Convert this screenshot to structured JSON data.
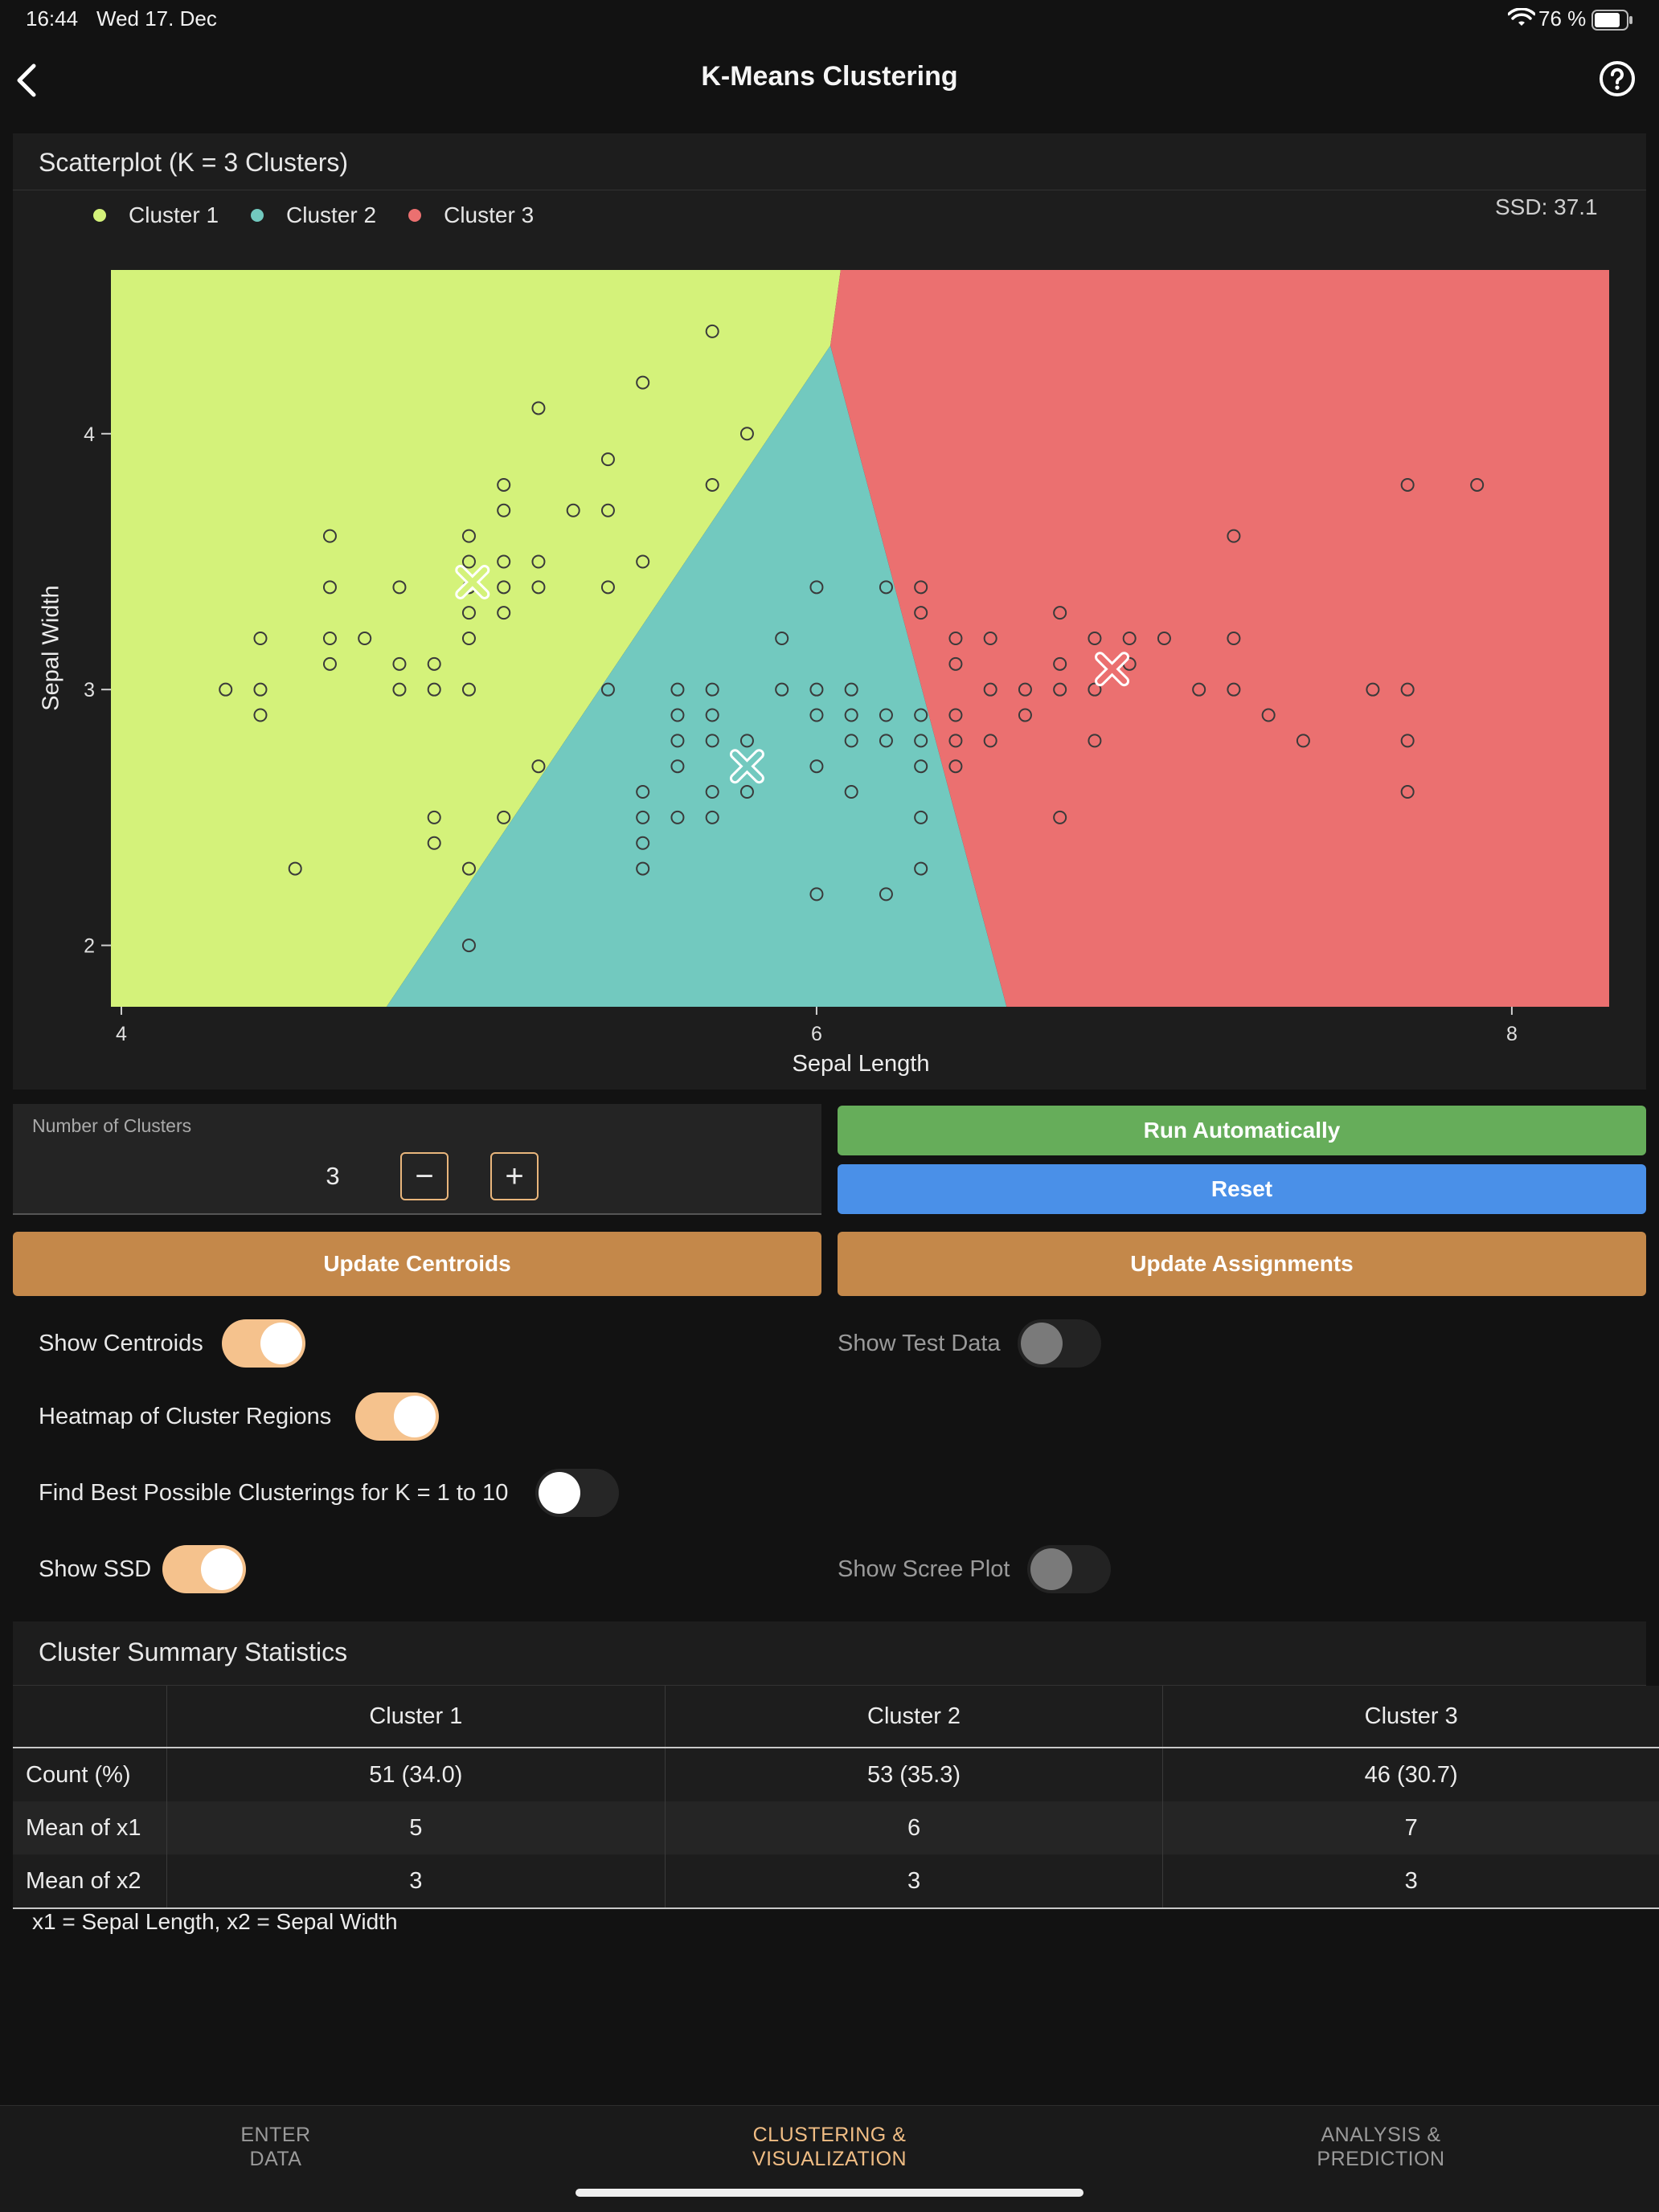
{
  "status_bar": {
    "time": "16:44",
    "date": "Wed 17. Dec",
    "battery": "76 %"
  },
  "nav": {
    "title": "K-Means Clustering",
    "back_icon": "chevron-left-icon",
    "help_icon": "help-circle-icon"
  },
  "scatter": {
    "title": "Scatterplot (K = 3 Clusters)",
    "ssd_label": "SSD: 37.1",
    "legend": [
      {
        "label": "Cluster 1",
        "color": "#d4f27a"
      },
      {
        "label": "Cluster 2",
        "color": "#72c9bf"
      },
      {
        "label": "Cluster 3",
        "color": "#eb7070"
      }
    ]
  },
  "chart_data": {
    "type": "scatter",
    "xlabel": "Sepal Length",
    "ylabel": "Sepal Width",
    "xlim": [
      3.97,
      8.28
    ],
    "ylim": [
      1.76,
      4.64
    ],
    "xticks": [
      4,
      6,
      8
    ],
    "yticks": [
      2,
      3,
      4
    ],
    "region_colors": {
      "cluster1": "#d4f27a",
      "cluster2": "#72c9bf",
      "cluster3": "#eb7070"
    },
    "centroids": [
      {
        "x": 5.01,
        "y": 3.42
      },
      {
        "x": 5.8,
        "y": 2.7
      },
      {
        "x": 6.85,
        "y": 3.08
      }
    ],
    "points": [
      [
        4.3,
        3.0
      ],
      [
        4.4,
        2.9
      ],
      [
        4.4,
        3.0
      ],
      [
        4.4,
        3.2
      ],
      [
        4.5,
        2.3
      ],
      [
        4.6,
        3.1
      ],
      [
        4.6,
        3.2
      ],
      [
        4.6,
        3.4
      ],
      [
        4.6,
        3.6
      ],
      [
        4.7,
        3.2
      ],
      [
        4.8,
        3.0
      ],
      [
        4.8,
        3.1
      ],
      [
        4.8,
        3.4
      ],
      [
        4.9,
        2.4
      ],
      [
        4.9,
        2.5
      ],
      [
        4.9,
        3.0
      ],
      [
        4.9,
        3.1
      ],
      [
        5.0,
        2.0
      ],
      [
        5.0,
        2.3
      ],
      [
        5.0,
        3.0
      ],
      [
        5.0,
        3.2
      ],
      [
        5.0,
        3.3
      ],
      [
        5.0,
        3.4
      ],
      [
        5.0,
        3.5
      ],
      [
        5.0,
        3.6
      ],
      [
        5.1,
        2.5
      ],
      [
        5.1,
        3.3
      ],
      [
        5.1,
        3.4
      ],
      [
        5.1,
        3.5
      ],
      [
        5.1,
        3.7
      ],
      [
        5.1,
        3.8
      ],
      [
        5.2,
        2.7
      ],
      [
        5.2,
        3.4
      ],
      [
        5.2,
        3.5
      ],
      [
        5.2,
        4.1
      ],
      [
        5.3,
        3.7
      ],
      [
        5.4,
        3.0
      ],
      [
        5.4,
        3.4
      ],
      [
        5.4,
        3.7
      ],
      [
        5.4,
        3.9
      ],
      [
        5.5,
        2.3
      ],
      [
        5.5,
        2.4
      ],
      [
        5.5,
        2.5
      ],
      [
        5.5,
        2.6
      ],
      [
        5.5,
        3.5
      ],
      [
        5.5,
        4.2
      ],
      [
        5.6,
        2.5
      ],
      [
        5.6,
        2.7
      ],
      [
        5.6,
        2.8
      ],
      [
        5.6,
        2.9
      ],
      [
        5.6,
        3.0
      ],
      [
        5.7,
        2.5
      ],
      [
        5.7,
        2.6
      ],
      [
        5.7,
        2.8
      ],
      [
        5.7,
        2.9
      ],
      [
        5.7,
        3.0
      ],
      [
        5.7,
        3.8
      ],
      [
        5.7,
        4.4
      ],
      [
        5.8,
        2.6
      ],
      [
        5.8,
        2.7
      ],
      [
        5.8,
        2.8
      ],
      [
        5.8,
        4.0
      ],
      [
        5.9,
        3.0
      ],
      [
        5.9,
        3.2
      ],
      [
        6.0,
        2.2
      ],
      [
        6.0,
        2.7
      ],
      [
        6.0,
        2.9
      ],
      [
        6.0,
        3.0
      ],
      [
        6.0,
        3.4
      ],
      [
        6.1,
        2.6
      ],
      [
        6.1,
        2.8
      ],
      [
        6.1,
        2.9
      ],
      [
        6.1,
        3.0
      ],
      [
        6.2,
        2.2
      ],
      [
        6.2,
        2.8
      ],
      [
        6.2,
        2.9
      ],
      [
        6.2,
        3.4
      ],
      [
        6.3,
        2.3
      ],
      [
        6.3,
        2.5
      ],
      [
        6.3,
        2.7
      ],
      [
        6.3,
        2.8
      ],
      [
        6.3,
        2.9
      ],
      [
        6.3,
        3.3
      ],
      [
        6.3,
        3.4
      ],
      [
        6.4,
        2.7
      ],
      [
        6.4,
        2.8
      ],
      [
        6.4,
        2.9
      ],
      [
        6.4,
        3.1
      ],
      [
        6.4,
        3.2
      ],
      [
        6.5,
        2.8
      ],
      [
        6.5,
        3.0
      ],
      [
        6.5,
        3.2
      ],
      [
        6.6,
        2.9
      ],
      [
        6.6,
        3.0
      ],
      [
        6.7,
        2.5
      ],
      [
        6.7,
        3.0
      ],
      [
        6.7,
        3.1
      ],
      [
        6.7,
        3.3
      ],
      [
        6.8,
        2.8
      ],
      [
        6.8,
        3.0
      ],
      [
        6.8,
        3.2
      ],
      [
        6.9,
        3.1
      ],
      [
        6.9,
        3.2
      ],
      [
        7.0,
        3.2
      ],
      [
        7.1,
        3.0
      ],
      [
        7.2,
        3.0
      ],
      [
        7.2,
        3.2
      ],
      [
        7.2,
        3.6
      ],
      [
        7.3,
        2.9
      ],
      [
        7.4,
        2.8
      ],
      [
        7.6,
        3.0
      ],
      [
        7.7,
        2.6
      ],
      [
        7.7,
        2.8
      ],
      [
        7.7,
        3.0
      ],
      [
        7.7,
        3.8
      ],
      [
        7.9,
        3.8
      ]
    ]
  },
  "controls": {
    "num_clusters_label": "Number of Clusters",
    "num_clusters_value": "3",
    "minus_label": "−",
    "plus_label": "+",
    "run_label": "Run Automatically",
    "reset_label": "Reset",
    "update_centroids_label": "Update Centroids",
    "update_assignments_label": "Update Assignments",
    "run_color": "#66ad5a",
    "reset_color": "#4a90e8",
    "update_color": "#c4884a"
  },
  "toggles": {
    "show_centroids": {
      "label": "Show Centroids",
      "on": true
    },
    "show_test_data": {
      "label": "Show Test Data",
      "on": false,
      "disabled": true
    },
    "heatmap": {
      "label": "Heatmap of Cluster Regions",
      "on": true
    },
    "best_clusterings": {
      "label": "Find Best Possible Clusterings for K = 1 to 10",
      "on": false
    },
    "show_ssd": {
      "label": "Show SSD",
      "on": true
    },
    "show_scree": {
      "label": "Show Scree Plot",
      "on": false,
      "disabled": true
    }
  },
  "summary": {
    "title": "Cluster Summary Statistics",
    "headers": [
      "",
      "Cluster 1",
      "Cluster 2",
      "Cluster 3"
    ],
    "rows": [
      {
        "label": "Count (%)",
        "values": [
          "51 (34.0)",
          "53 (35.3)",
          "46 (30.7)"
        ]
      },
      {
        "label": "Mean of x1",
        "values": [
          "5",
          "6",
          "7"
        ]
      },
      {
        "label": "Mean of x2",
        "values": [
          "3",
          "3",
          "3"
        ]
      }
    ],
    "footnote": "x1 = Sepal Length, x2 = Sepal Width"
  },
  "tabs": [
    {
      "line1": "ENTER",
      "line2": "DATA",
      "active": false
    },
    {
      "line1": "CLUSTERING &",
      "line2": "VISUALIZATION",
      "active": true
    },
    {
      "line1": "ANALYSIS &",
      "line2": "PREDICTION",
      "active": false
    }
  ],
  "tab_colors": {
    "active": "#f0bd84",
    "inactive": "#9a9a9a"
  }
}
